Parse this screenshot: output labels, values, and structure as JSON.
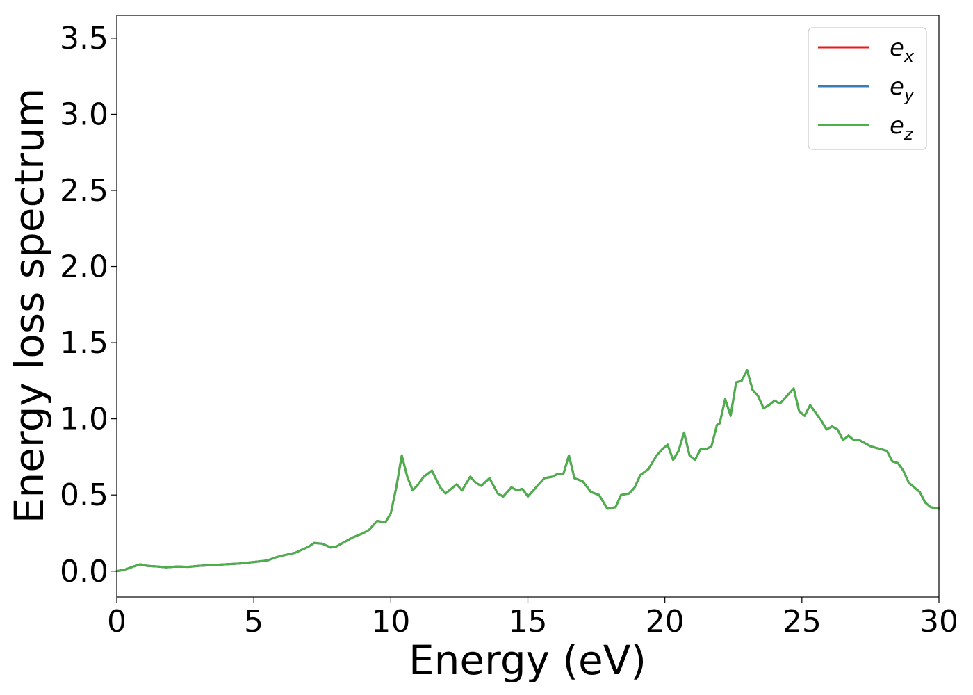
{
  "chart_data": {
    "type": "line",
    "title": "",
    "xlabel": "Energy (eV)",
    "ylabel": "Energy loss spectrum",
    "xlim": [
      0,
      30
    ],
    "ylim": [
      -0.17,
      3.65
    ],
    "x_ticks": [
      0,
      5,
      10,
      15,
      20,
      25,
      30
    ],
    "y_ticks": [
      0.0,
      0.5,
      1.0,
      1.5,
      2.0,
      2.5,
      3.0,
      3.5
    ],
    "x_tick_labels": [
      "0",
      "5",
      "10",
      "15",
      "20",
      "25",
      "30"
    ],
    "y_tick_labels": [
      "0.0",
      "0.5",
      "1.0",
      "1.5",
      "2.0",
      "2.5",
      "3.0",
      "3.5"
    ],
    "grid": false,
    "legend_position": "top-right",
    "legend": [
      {
        "base": "e",
        "sub": "x",
        "color": "#e41a1c"
      },
      {
        "base": "e",
        "sub": "y",
        "color": "#377eb8"
      },
      {
        "base": "e",
        "sub": "z",
        "color": "#4daf4a"
      }
    ],
    "series": [
      {
        "name": "e_x",
        "color": "#e41a1c",
        "x": [
          0,
          0.3,
          0.6,
          0.85,
          1.1,
          1.5,
          1.8,
          2.2,
          2.6,
          3.0,
          3.5,
          4.0,
          4.5,
          5.0,
          5.5,
          5.8,
          6.0,
          6.5,
          7.0,
          7.2,
          7.5,
          7.8,
          8.0,
          8.3,
          8.6,
          9.0,
          9.2,
          9.5,
          9.8,
          10.0,
          10.2,
          10.4,
          10.6,
          10.8,
          11.0,
          11.2,
          11.5,
          11.8,
          12.0,
          12.4,
          12.6,
          12.9,
          13.1,
          13.3,
          13.6,
          13.9,
          14.1,
          14.4,
          14.6,
          14.8,
          15.0,
          15.3,
          15.6,
          15.9,
          16.1,
          16.3,
          16.5,
          16.7,
          17.0,
          17.3,
          17.6,
          17.9,
          18.2,
          18.4,
          18.7,
          18.9,
          19.1,
          19.4,
          19.7,
          19.9,
          20.1,
          20.3,
          20.5,
          20.7,
          20.9,
          21.1,
          21.3,
          21.5,
          21.7,
          21.9,
          22.0,
          22.2,
          22.4,
          22.6,
          22.8,
          23.0,
          23.2,
          23.4,
          23.6,
          23.8,
          24.0,
          24.2,
          24.4,
          24.7,
          24.9,
          25.1,
          25.3,
          25.5,
          25.7,
          25.9,
          26.1,
          26.3,
          26.5,
          26.7,
          26.9,
          27.1,
          27.3,
          27.5,
          27.7,
          27.9,
          28.1,
          28.3,
          28.5,
          28.7,
          28.9,
          29.1,
          29.3,
          29.5,
          29.7,
          30.0
        ],
        "y": [
          0.0,
          0.01,
          0.03,
          0.045,
          0.035,
          0.03,
          0.025,
          0.03,
          0.028,
          0.035,
          0.04,
          0.045,
          0.05,
          0.06,
          0.07,
          0.09,
          0.1,
          0.12,
          0.16,
          0.185,
          0.18,
          0.155,
          0.16,
          0.19,
          0.22,
          0.25,
          0.27,
          0.33,
          0.32,
          0.38,
          0.55,
          0.76,
          0.62,
          0.53,
          0.57,
          0.62,
          0.66,
          0.55,
          0.51,
          0.57,
          0.53,
          0.62,
          0.58,
          0.56,
          0.61,
          0.51,
          0.49,
          0.55,
          0.53,
          0.54,
          0.49,
          0.55,
          0.61,
          0.62,
          0.64,
          0.64,
          0.76,
          0.61,
          0.59,
          0.52,
          0.5,
          0.41,
          0.42,
          0.5,
          0.51,
          0.55,
          0.63,
          0.67,
          0.76,
          0.8,
          0.83,
          0.73,
          0.79,
          0.91,
          0.76,
          0.73,
          0.8,
          0.8,
          0.82,
          0.96,
          0.97,
          1.13,
          1.02,
          1.24,
          1.25,
          1.32,
          1.19,
          1.15,
          1.07,
          1.09,
          1.12,
          1.1,
          1.14,
          1.2,
          1.05,
          1.02,
          1.09,
          1.04,
          0.99,
          0.93,
          0.95,
          0.93,
          0.86,
          0.89,
          0.86,
          0.86,
          0.84,
          0.82,
          0.81,
          0.8,
          0.79,
          0.72,
          0.71,
          0.66,
          0.58,
          0.55,
          0.52,
          0.45,
          0.42,
          0.41
        ]
      },
      {
        "name": "e_y",
        "color": "#377eb8",
        "x": [
          0,
          0.3,
          0.6,
          0.85,
          1.1,
          1.5,
          1.8,
          2.2,
          2.6,
          3.0,
          3.5,
          4.0,
          4.5,
          5.0,
          5.5,
          5.8,
          6.0,
          6.5,
          7.0,
          7.2,
          7.5,
          7.8,
          8.0,
          8.3,
          8.6,
          9.0,
          9.2,
          9.5,
          9.8,
          10.0,
          10.2,
          10.4,
          10.6,
          10.8,
          11.0,
          11.2,
          11.5,
          11.8,
          12.0,
          12.4,
          12.6,
          12.9,
          13.1,
          13.3,
          13.6,
          13.9,
          14.1,
          14.4,
          14.6,
          14.8,
          15.0,
          15.3,
          15.6,
          15.9,
          16.1,
          16.3,
          16.5,
          16.7,
          17.0,
          17.3,
          17.6,
          17.9,
          18.2,
          18.4,
          18.7,
          18.9,
          19.1,
          19.4,
          19.7,
          19.9,
          20.1,
          20.3,
          20.5,
          20.7,
          20.9,
          21.1,
          21.3,
          21.5,
          21.7,
          21.9,
          22.0,
          22.2,
          22.4,
          22.6,
          22.8,
          23.0,
          23.2,
          23.4,
          23.6,
          23.8,
          24.0,
          24.2,
          24.4,
          24.7,
          24.9,
          25.1,
          25.3,
          25.5,
          25.7,
          25.9,
          26.1,
          26.3,
          26.5,
          26.7,
          26.9,
          27.1,
          27.3,
          27.5,
          27.7,
          27.9,
          28.1,
          28.3,
          28.5,
          28.7,
          28.9,
          29.1,
          29.3,
          29.5,
          29.7,
          30.0
        ],
        "y": [
          0.0,
          0.01,
          0.03,
          0.045,
          0.035,
          0.03,
          0.025,
          0.03,
          0.028,
          0.035,
          0.04,
          0.045,
          0.05,
          0.06,
          0.07,
          0.09,
          0.1,
          0.12,
          0.16,
          0.185,
          0.18,
          0.155,
          0.16,
          0.19,
          0.22,
          0.25,
          0.27,
          0.33,
          0.32,
          0.38,
          0.55,
          0.76,
          0.62,
          0.53,
          0.57,
          0.62,
          0.66,
          0.55,
          0.51,
          0.57,
          0.53,
          0.62,
          0.58,
          0.56,
          0.61,
          0.51,
          0.49,
          0.55,
          0.53,
          0.54,
          0.49,
          0.55,
          0.61,
          0.62,
          0.64,
          0.64,
          0.76,
          0.61,
          0.59,
          0.52,
          0.5,
          0.41,
          0.42,
          0.5,
          0.51,
          0.55,
          0.63,
          0.67,
          0.76,
          0.8,
          0.83,
          0.73,
          0.79,
          0.91,
          0.76,
          0.73,
          0.8,
          0.8,
          0.82,
          0.96,
          0.97,
          1.13,
          1.02,
          1.24,
          1.25,
          1.32,
          1.19,
          1.15,
          1.07,
          1.09,
          1.12,
          1.1,
          1.14,
          1.2,
          1.05,
          1.02,
          1.09,
          1.04,
          0.99,
          0.93,
          0.95,
          0.93,
          0.86,
          0.89,
          0.86,
          0.86,
          0.84,
          0.82,
          0.81,
          0.8,
          0.79,
          0.72,
          0.71,
          0.66,
          0.58,
          0.55,
          0.52,
          0.45,
          0.42,
          0.41
        ]
      },
      {
        "name": "e_z",
        "color": "#4daf4a",
        "x": [
          0,
          0.3,
          0.6,
          0.85,
          1.1,
          1.5,
          1.8,
          2.2,
          2.6,
          3.0,
          3.5,
          4.0,
          4.5,
          5.0,
          5.5,
          5.8,
          6.0,
          6.5,
          7.0,
          7.2,
          7.5,
          7.8,
          8.0,
          8.3,
          8.6,
          9.0,
          9.2,
          9.5,
          9.8,
          10.0,
          10.2,
          10.4,
          10.6,
          10.8,
          11.0,
          11.2,
          11.5,
          11.8,
          12.0,
          12.4,
          12.6,
          12.9,
          13.1,
          13.3,
          13.6,
          13.9,
          14.1,
          14.4,
          14.6,
          14.8,
          15.0,
          15.3,
          15.6,
          15.9,
          16.1,
          16.3,
          16.5,
          16.7,
          17.0,
          17.3,
          17.6,
          17.9,
          18.2,
          18.4,
          18.7,
          18.9,
          19.1,
          19.4,
          19.7,
          19.9,
          20.1,
          20.3,
          20.5,
          20.7,
          20.9,
          21.1,
          21.3,
          21.5,
          21.7,
          21.9,
          22.0,
          22.2,
          22.4,
          22.6,
          22.8,
          23.0,
          23.2,
          23.4,
          23.6,
          23.8,
          24.0,
          24.2,
          24.4,
          24.7,
          24.9,
          25.1,
          25.3,
          25.5,
          25.7,
          25.9,
          26.1,
          26.3,
          26.5,
          26.7,
          26.9,
          27.1,
          27.3,
          27.5,
          27.7,
          27.9,
          28.1,
          28.3,
          28.5,
          28.7,
          28.9,
          29.1,
          29.3,
          29.5,
          29.7,
          30.0
        ],
        "y": [
          0.0,
          0.01,
          0.03,
          0.045,
          0.035,
          0.03,
          0.025,
          0.03,
          0.028,
          0.035,
          0.04,
          0.045,
          0.05,
          0.06,
          0.07,
          0.09,
          0.1,
          0.12,
          0.16,
          0.185,
          0.18,
          0.155,
          0.16,
          0.19,
          0.22,
          0.25,
          0.27,
          0.33,
          0.32,
          0.38,
          0.55,
          0.76,
          0.62,
          0.53,
          0.57,
          0.62,
          0.66,
          0.55,
          0.51,
          0.57,
          0.53,
          0.62,
          0.58,
          0.56,
          0.61,
          0.51,
          0.49,
          0.55,
          0.53,
          0.54,
          0.49,
          0.55,
          0.61,
          0.62,
          0.64,
          0.64,
          0.76,
          0.61,
          0.59,
          0.52,
          0.5,
          0.41,
          0.42,
          0.5,
          0.51,
          0.55,
          0.63,
          0.67,
          0.76,
          0.8,
          0.83,
          0.73,
          0.79,
          0.91,
          0.76,
          0.73,
          0.8,
          0.8,
          0.82,
          0.96,
          0.97,
          1.13,
          1.02,
          1.24,
          1.25,
          1.32,
          1.19,
          1.15,
          1.07,
          1.09,
          1.12,
          1.1,
          1.14,
          1.2,
          1.05,
          1.02,
          1.09,
          1.04,
          0.99,
          0.93,
          0.95,
          0.93,
          0.86,
          0.89,
          0.86,
          0.86,
          0.84,
          0.82,
          0.81,
          0.8,
          0.79,
          0.72,
          0.71,
          0.66,
          0.58,
          0.55,
          0.52,
          0.45,
          0.42,
          0.41
        ]
      }
    ]
  }
}
